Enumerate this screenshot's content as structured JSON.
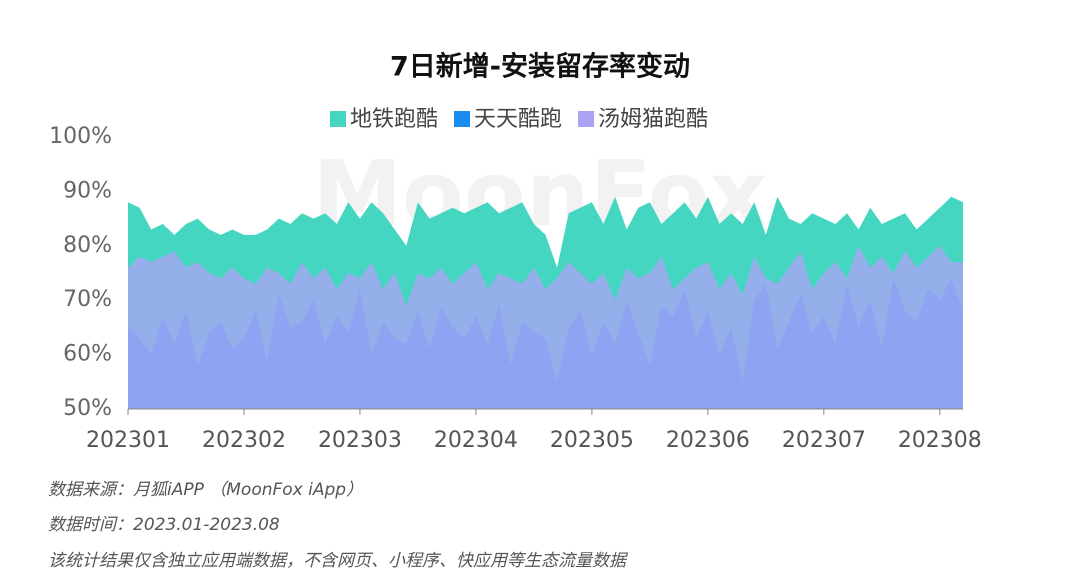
{
  "chart_data": {
    "type": "area",
    "title": "7日新增-安装留存率变动",
    "watermark": "MoonFox",
    "categories": [
      "202301",
      null,
      null,
      null,
      null,
      null,
      null,
      null,
      null,
      null,
      "202302",
      null,
      null,
      null,
      null,
      null,
      null,
      null,
      null,
      null,
      "202303",
      null,
      null,
      null,
      null,
      null,
      null,
      null,
      null,
      null,
      "202304",
      null,
      null,
      null,
      null,
      null,
      null,
      null,
      null,
      null,
      "202305",
      null,
      null,
      null,
      null,
      null,
      null,
      null,
      null,
      null,
      "202306",
      null,
      null,
      null,
      null,
      null,
      null,
      null,
      null,
      null,
      "202307",
      null,
      null,
      null,
      null,
      null,
      null,
      null,
      null,
      null,
      "202308",
      null,
      null
    ],
    "series": [
      {
        "name": "地铁跑酷",
        "color": "#45d6c1",
        "values": [
          88,
          87,
          83,
          84,
          82,
          84,
          85,
          83,
          82,
          83,
          82,
          82,
          83,
          85,
          84,
          86,
          85,
          86,
          84,
          88,
          85,
          88,
          86,
          83,
          80,
          88,
          85,
          86,
          87,
          86,
          87,
          88,
          86,
          87,
          88,
          84,
          82,
          76,
          86,
          87,
          88,
          84,
          89,
          83,
          87,
          88,
          84,
          86,
          88,
          85,
          89,
          84,
          86,
          84,
          88,
          82,
          89,
          85,
          84,
          86,
          85,
          84,
          86,
          83,
          87,
          84,
          85,
          86,
          83,
          85,
          87,
          89,
          88
        ]
      },
      {
        "name": "天天酷跑",
        "color": "#1a8cf0",
        "values": [
          65,
          63,
          60,
          67,
          62,
          68,
          58,
          64,
          66,
          61,
          63,
          68,
          59,
          71,
          65,
          66,
          70,
          62,
          67,
          64,
          72,
          60,
          66,
          63,
          62,
          68,
          61,
          69,
          65,
          63,
          67,
          62,
          69,
          58,
          66,
          64,
          63,
          55,
          65,
          68,
          60,
          66,
          62,
          70,
          64,
          58,
          69,
          67,
          72,
          63,
          68,
          60,
          65,
          55,
          70,
          73,
          61,
          66,
          71,
          64,
          67,
          62,
          73,
          65,
          70,
          61,
          74,
          68,
          66,
          72,
          70,
          74,
          68
        ]
      },
      {
        "name": "汤姆猫跑酷",
        "color": "#a9a5f4",
        "values": [
          76,
          78,
          77,
          78,
          79,
          76,
          77,
          75,
          74,
          76,
          74,
          73,
          76,
          75,
          73,
          77,
          74,
          76,
          72,
          75,
          74,
          77,
          72,
          75,
          69,
          75,
          74,
          76,
          73,
          75,
          77,
          72,
          75,
          74,
          73,
          76,
          72,
          74,
          77,
          75,
          73,
          75,
          70,
          76,
          74,
          75,
          78,
          72,
          74,
          76,
          77,
          72,
          75,
          71,
          78,
          74,
          73,
          76,
          79,
          72,
          75,
          77,
          74,
          80,
          76,
          78,
          75,
          79,
          76,
          78,
          80,
          77,
          77
        ]
      }
    ],
    "ylim": [
      50,
      100
    ],
    "yticks": [
      {
        "value": 50,
        "label": "50%"
      },
      {
        "value": 60,
        "label": "60%"
      },
      {
        "value": 70,
        "label": "70%"
      },
      {
        "value": 80,
        "label": "80%"
      },
      {
        "value": 90,
        "label": "90%"
      },
      {
        "value": 100,
        "label": "100%"
      }
    ],
    "legend": "top"
  },
  "notes": [
    "数据来源：月狐iAPP （MoonFox iApp）",
    "数据时间：2023.01-2023.08",
    "该统计结果仅含独立应用端数据，不含网页、小程序、快应用等生态流量数据"
  ]
}
